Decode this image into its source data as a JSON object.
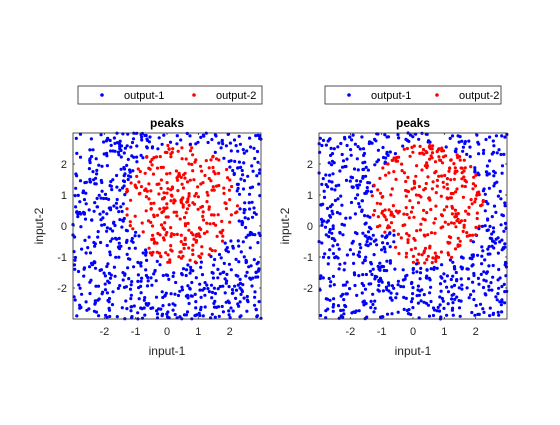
{
  "colors": {
    "blue": "#0000ff",
    "red": "#ff0000",
    "axis": "#262626",
    "background": "#ffffff"
  },
  "chart_data": [
    {
      "type": "scatter",
      "title": "peaks",
      "xlabel": "input-1",
      "ylabel": "input-2",
      "xlim": [
        -3,
        3
      ],
      "ylim": [
        -3,
        3
      ],
      "xticks": [
        -2,
        -1,
        0,
        1,
        2
      ],
      "yticks": [
        -2,
        -1,
        0,
        1,
        2
      ],
      "grid": false,
      "legend_placement": "top, outside plot (horizontal)",
      "series": [
        {
          "name": "output-1",
          "color": "#0000ff",
          "marker": "dot",
          "region": "points where peaks(input-1,input-2) <= threshold (outer region)"
        },
        {
          "name": "output-2",
          "color": "#ff0000",
          "marker": "dot",
          "region": "points inside central blob roughly x in [-1.3, 2.3], y in [-1.3, 2.7]"
        }
      ],
      "approx_point_count": 1000
    },
    {
      "type": "scatter",
      "title": "peaks",
      "xlabel": "input-1",
      "ylabel": "input-2",
      "xlim": [
        -3,
        3
      ],
      "ylim": [
        -3,
        3
      ],
      "xticks": [
        -2,
        -1,
        0,
        1,
        2
      ],
      "yticks": [
        -2,
        -1,
        0,
        1,
        2
      ],
      "grid": false,
      "legend_placement": "top, outside plot (horizontal)",
      "series": [
        {
          "name": "output-1",
          "color": "#0000ff",
          "marker": "dot"
        },
        {
          "name": "output-2",
          "color": "#ff0000",
          "marker": "dot"
        }
      ],
      "approx_point_count": 1000
    }
  ]
}
